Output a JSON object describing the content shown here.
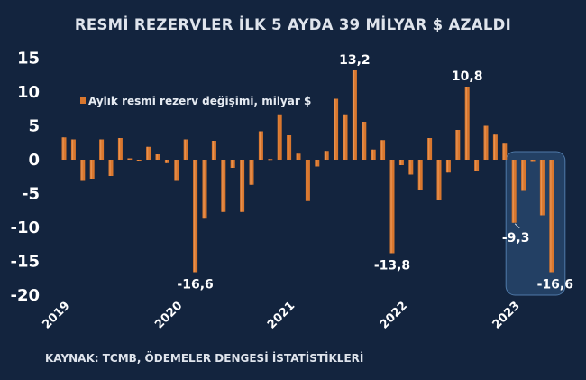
{
  "chart_data": {
    "type": "bar",
    "title": "RESMİ REZERVLER İLK 5 AYDA 39 MİLYAR $ AZALDI",
    "legend": "Aylık resmi rezerv değişimi, milyar $",
    "legend_position": "top-left",
    "source": "KAYNAK: TCMB, ÖDEMELER DENGESİ İSTATİSTİKLERİ",
    "ylim": [
      -20,
      15
    ],
    "yticks": [
      "15",
      "10",
      "5",
      "0",
      "-5",
      "-10",
      "-15",
      "-20"
    ],
    "xticks": [
      "2019",
      "2020",
      "2021",
      "2022",
      "2023"
    ],
    "categories_note": "monthly, Jan 2019 - May 2023",
    "values": [
      3.3,
      3.0,
      -3.0,
      -2.8,
      3.0,
      -2.4,
      3.2,
      0.2,
      -0.1,
      1.9,
      0.8,
      -0.5,
      -3.0,
      3.0,
      -16.6,
      -8.7,
      2.8,
      -7.7,
      -1.2,
      -7.7,
      -3.7,
      4.2,
      0.1,
      6.7,
      3.6,
      0.9,
      -6.1,
      -1.0,
      1.3,
      9.0,
      6.7,
      13.2,
      5.6,
      1.5,
      2.9,
      -13.8,
      -0.8,
      -2.2,
      -4.5,
      3.2,
      -6.0,
      -1.9,
      4.4,
      10.8,
      -1.7,
      5.0,
      3.7,
      2.5,
      -9.3,
      -4.6,
      -0.2,
      -8.2,
      -16.6
    ],
    "data_labels": [
      {
        "index": 14,
        "text": "-16,6"
      },
      {
        "index": 31,
        "text": "13,2"
      },
      {
        "index": 35,
        "text": "-13,8"
      },
      {
        "index": 43,
        "text": "10,8"
      },
      {
        "index": 48,
        "text": "-9,3"
      },
      {
        "index": 52,
        "text": "-16,6"
      }
    ],
    "highlight": {
      "from_index": 48,
      "to_index": 52
    },
    "colors": {
      "bar": "#d9772e",
      "background": "#13243e",
      "highlight": "#2a4a72"
    }
  }
}
